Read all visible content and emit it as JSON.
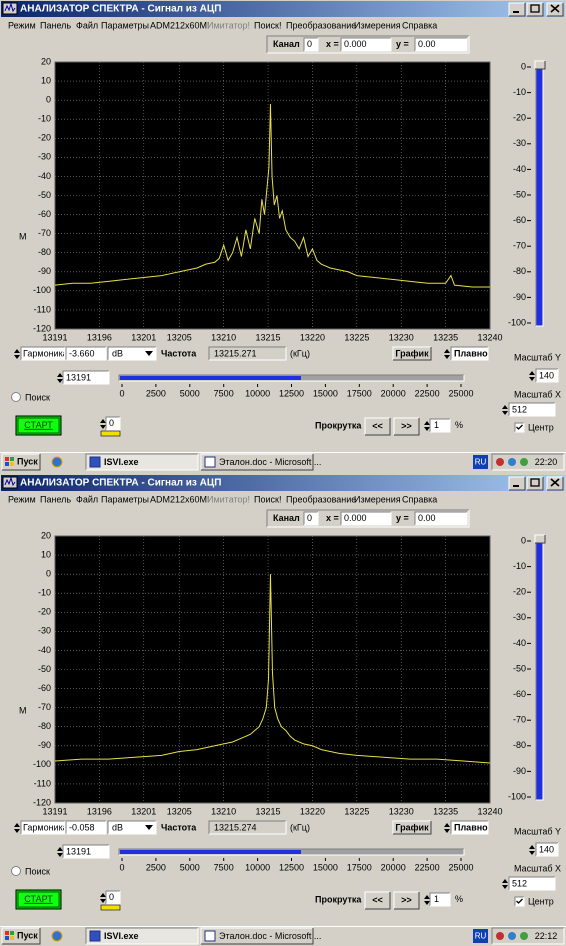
{
  "windows": [
    {
      "title": "АНАЛИЗАТОР СПЕКТРА - Сигнал из АЦП",
      "menu": [
        "Режим",
        "Панель",
        "Файл",
        "Параметры",
        "ADM212x60M!",
        "Имитатор!",
        "Поиск!",
        "Преобразование",
        "Измерения",
        "Справка"
      ],
      "channel_label": "Канал",
      "channel": "0",
      "x_label": "x =",
      "x_value": "0.000",
      "y_label": "y =",
      "y_value": "0.00",
      "y_axis_label": "М",
      "marker_mode": "Гармоника",
      "marker_level": "-3.660",
      "unit": "dB",
      "freq_label": "Частота",
      "freq_value": "13215.271",
      "freq_unit": "(кГц)",
      "graph_button": "График",
      "smooth": "Плавно",
      "scale_y_label": "Масштаб Y",
      "scale_y": "140",
      "scale_x_label": "Масштаб X",
      "scale_x": "512",
      "center": "Центр",
      "start_freq": "13191",
      "search": "Поиск",
      "start": "СТАРТ",
      "counter": "0",
      "scroll_label": "Прокрутка",
      "back": "<<",
      "forward": ">>",
      "step": "1",
      "percent": "%",
      "hslider_ticks": [
        0,
        2500,
        5000,
        7500,
        10000,
        12500,
        15000,
        17500,
        20000,
        22500,
        25000
      ],
      "vslider_ticks": [
        0,
        -10,
        -20,
        -30,
        -40,
        -50,
        -60,
        -70,
        -80,
        -90,
        -100
      ],
      "taskbar": {
        "start": "Пуск",
        "tasks": [
          "ISVI.exe",
          "Эталон.doc - Microsoft ..."
        ],
        "lang": "RU",
        "clock": "22:20"
      }
    },
    {
      "title": "АНАЛИЗАТОР СПЕКТРА - Сигнал из АЦП",
      "menu": [
        "Режим",
        "Панель",
        "Файл",
        "Параметры",
        "ADM212x60M!",
        "Имитатор!",
        "Поиск!",
        "Преобразование",
        "Измерения",
        "Справка"
      ],
      "channel_label": "Канал",
      "channel": "0",
      "x_label": "x =",
      "x_value": "0.000",
      "y_label": "y =",
      "y_value": "0.00",
      "y_axis_label": "М",
      "marker_mode": "Гармоника",
      "marker_level": "-0.058",
      "unit": "dB",
      "freq_label": "Частота",
      "freq_value": "13215.274",
      "freq_unit": "(кГц)",
      "graph_button": "График",
      "smooth": "Плавно",
      "scale_y_label": "Масштаб Y",
      "scale_y": "140",
      "scale_x_label": "Масштаб X",
      "scale_x": "512",
      "center": "Центр",
      "start_freq": "13191",
      "search": "Поиск",
      "start": "СТАРТ",
      "counter": "0",
      "scroll_label": "Прокрутка",
      "back": "<<",
      "forward": ">>",
      "step": "1",
      "percent": "%",
      "hslider_ticks": [
        0,
        2500,
        5000,
        7500,
        10000,
        12500,
        15000,
        17500,
        20000,
        22500,
        25000
      ],
      "vslider_ticks": [
        0,
        -10,
        -20,
        -30,
        -40,
        -50,
        -60,
        -70,
        -80,
        -90,
        -100
      ],
      "taskbar": {
        "start": "Пуск",
        "tasks": [
          "ISVI.exe",
          "Эталон.doc - Microsoft ..."
        ],
        "lang": "RU",
        "clock": "22:12"
      }
    }
  ],
  "chart_data": [
    {
      "type": "line",
      "x": [
        13191,
        13193,
        13195,
        13197,
        13199,
        13201,
        13203,
        13204,
        13205,
        13206,
        13207,
        13208,
        13209,
        13209.5,
        13210,
        13210.5,
        13211,
        13211.5,
        13212,
        13212.5,
        13213,
        13213.5,
        13214,
        13214.3,
        13214.6,
        13214.9,
        13215.1,
        13215.27,
        13215.45,
        13215.7,
        13216,
        13216.3,
        13216.6,
        13217,
        13217.5,
        13218,
        13218.5,
        13219,
        13219.5,
        13220,
        13220.5,
        13221,
        13222,
        13223,
        13224,
        13225,
        13227,
        13229,
        13231,
        13233,
        13235,
        13235.6,
        13236,
        13238,
        13240
      ],
      "series": [
        {
          "color": "#e6e04a",
          "values": [
            -97,
            -96,
            -96,
            -95,
            -94,
            -93,
            -92,
            -91,
            -90,
            -89,
            -88,
            -86,
            -85,
            -83,
            -76,
            -84,
            -80,
            -72,
            -82,
            -68,
            -78,
            -62,
            -70,
            -52,
            -60,
            -45,
            -35,
            -2,
            -40,
            -55,
            -50,
            -62,
            -58,
            -68,
            -72,
            -74,
            -78,
            -72,
            -82,
            -78,
            -84,
            -86,
            -88,
            -89,
            -90,
            -92,
            -93,
            -94,
            -95,
            -96,
            -96,
            -92,
            -97,
            -98,
            -98
          ]
        }
      ],
      "xlim": [
        13191,
        13240
      ],
      "xticks": [
        13191,
        13196,
        13201,
        13205,
        13210,
        13215,
        13220,
        13225,
        13230,
        13235,
        13240
      ],
      "ylim": [
        -120,
        20
      ],
      "yticks": [
        20,
        10,
        0,
        -10,
        -20,
        -30,
        -40,
        -50,
        -60,
        -70,
        -80,
        -90,
        -100,
        -110,
        -120
      ],
      "grid": true
    },
    {
      "type": "line",
      "x": [
        13191,
        13194,
        13197,
        13200,
        13203,
        13205,
        13207,
        13209,
        13210,
        13211,
        13212,
        13213,
        13213.5,
        13214,
        13214.4,
        13214.8,
        13215.05,
        13215.27,
        13215.5,
        13215.75,
        13216.1,
        13216.5,
        13217,
        13217.5,
        13218,
        13219,
        13220,
        13221,
        13223,
        13225,
        13228,
        13231,
        13234,
        13237,
        13240
      ],
      "series": [
        {
          "color": "#e6e04a",
          "values": [
            -98,
            -97,
            -97,
            -96,
            -95,
            -93,
            -92,
            -90,
            -89,
            -88,
            -86,
            -84,
            -82,
            -80,
            -76,
            -70,
            -55,
            0,
            -52,
            -70,
            -76,
            -80,
            -82,
            -85,
            -87,
            -89,
            -90,
            -92,
            -94,
            -95,
            -96,
            -97,
            -97,
            -98,
            -99
          ]
        }
      ],
      "xlim": [
        13191,
        13240
      ],
      "xticks": [
        13191,
        13196,
        13201,
        13205,
        13210,
        13215,
        13220,
        13225,
        13230,
        13235,
        13240
      ],
      "ylim": [
        -120,
        20
      ],
      "yticks": [
        20,
        10,
        0,
        -10,
        -20,
        -30,
        -40,
        -50,
        -60,
        -70,
        -80,
        -90,
        -100,
        -110,
        -120
      ],
      "grid": true
    }
  ]
}
